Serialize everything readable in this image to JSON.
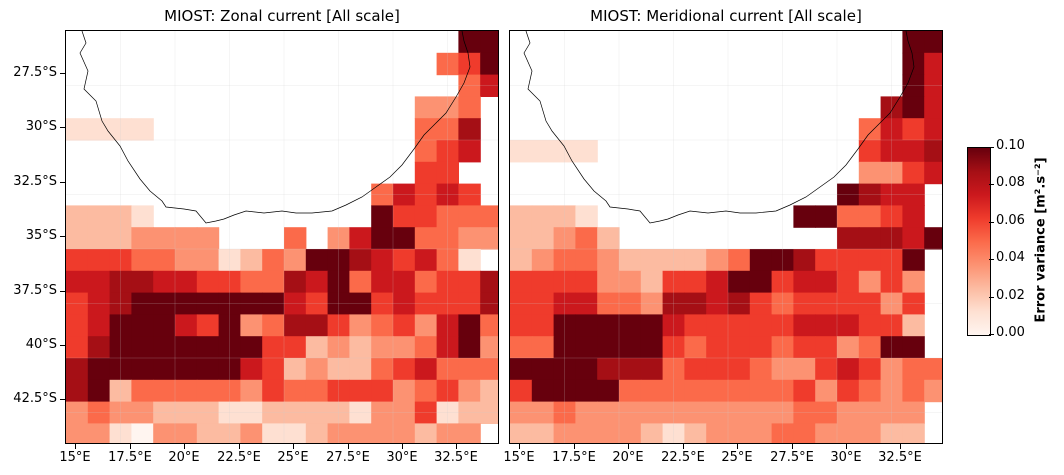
{
  "panels": [
    {
      "id": "zonal",
      "title": "MIOST: Zonal current [All scale]"
    },
    {
      "id": "meridional",
      "title": "MIOST: Meridional current [All scale]"
    }
  ],
  "lat_ticks": [
    "27.5°S",
    "30°S",
    "32.5°S",
    "35°S",
    "37.5°S",
    "40°S",
    "42.5°S"
  ],
  "lon_ticks": [
    "15°E",
    "17.5°E",
    "20°E",
    "22.5°E",
    "25°E",
    "27.5°E",
    "30°E",
    "32.5°E"
  ],
  "colorbar": {
    "label": "Error variance [m².s⁻²]",
    "ticks": [
      "0.00",
      "0.02",
      "0.04",
      "0.06",
      "0.08",
      "0.10"
    ],
    "colormap": "Reds",
    "range": [
      0.0,
      0.1
    ]
  },
  "colors": [
    "#fff5f0",
    "#fee0d2",
    "#fcbba1",
    "#fc9272",
    "#fb6a4a",
    "#ef3b2c",
    "#cb181d",
    "#a50f15",
    "#67000d"
  ],
  "grid_levels": {
    "zonal": [
      "..................99",
      ".................459",
      "..................46",
      "................334.",
      "1111............447.",
      "................456.",
      "................55..",
      "..............46565.",
      "2221..........855444",
      "2223333...4.36994433",
      "5554433124389765641",
      "66776655447694664557",
      "56788999986598565557",
      "56889658347753453684",
      "579989998552323346935",
      "79989999652322456444",
      "792444443544555345322",
      "34332221122221335122",
      "3310332231123333233",
      "3322111212122113222"
    ],
    "meridional": [
      "..................99",
      "..................96",
      "..................96",
      ".................796",
      "................4656",
      "1111............5667",
      "................3356",
      "...............8766",
      "2221.........884456",
      "22342..........77768",
      "2344322223488755558",
      "5555332556985665353",
      "5566443776754555535",
      "5599999655555666552",
      "4499998545554553488",
      "89987774555433565344",
      "59999444444445354343",
      "3343333333333443333",
      "2233332123334433322",
      "22223334333333333210"
    ]
  }
}
